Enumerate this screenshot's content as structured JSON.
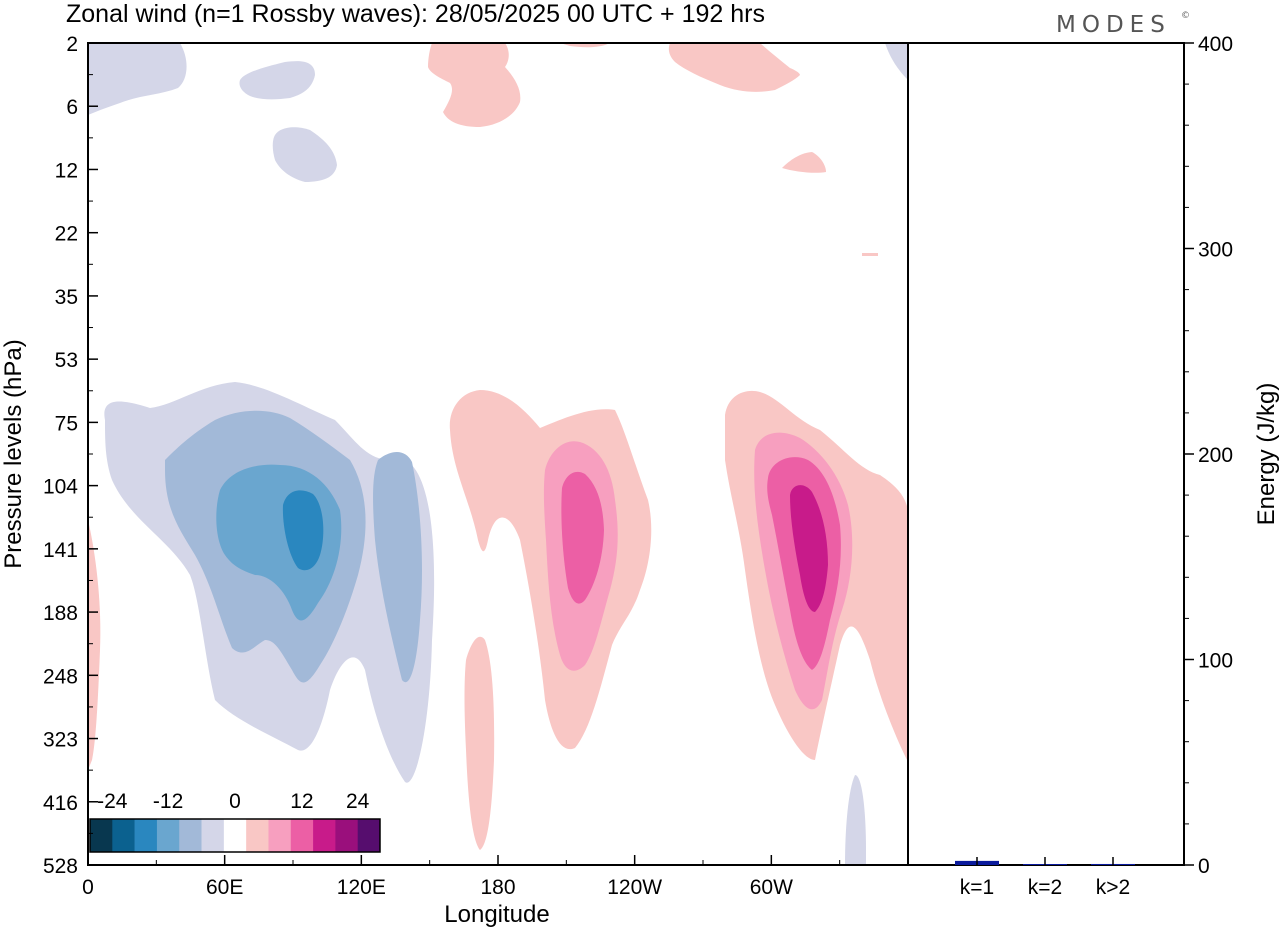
{
  "title": "Zonal wind (n=1 Rossby waves):  28/05/2025  00 UTC  + 192 hrs",
  "brand": "MODES",
  "brand_mark": "©",
  "colors": {
    "levels": [
      "#08374f",
      "#0b618f",
      "#2a87bf",
      "#6aa6cf",
      "#a2b9d8",
      "#d4d6e8",
      "#ffffff",
      "#f9c7c5",
      "#f79fbf",
      "#ec5fa5",
      "#c81b8a",
      "#9a0f7c",
      "#560d6e"
    ],
    "bar": "#0a1a9c"
  },
  "chart_data": [
    {
      "type": "heatmap",
      "subtype": "filled-contour (longitude-pressure)",
      "title": "Zonal wind (n=1 Rossby waves):  28/05/2025  00 UTC  + 192 hrs",
      "xlabel": "Longitude",
      "ylabel": "Pressure levels (hPa)",
      "x_ticks": [
        "0",
        "60E",
        "120E",
        "180",
        "120W",
        "60W"
      ],
      "x_tick_degrees": [
        0,
        60,
        120,
        180,
        240,
        300
      ],
      "xlim": [
        0,
        360
      ],
      "y_ticks": [
        "2",
        "6",
        "12",
        "22",
        "35",
        "53",
        "75",
        "104",
        "141",
        "188",
        "248",
        "323",
        "416",
        "528"
      ],
      "y_order": "2 at top, 528 at bottom (levels equally spaced)",
      "colorbar": {
        "labels": [
          "-24",
          "-12",
          "0",
          "12",
          "24"
        ],
        "boundaries": [
          -30,
          -25,
          -20,
          -15,
          -10,
          -5,
          0,
          5,
          10,
          15,
          20,
          25,
          30
        ],
        "placement": "bottom-left inside plot"
      },
      "features": [
        {
          "sign": "negative",
          "min_value": -20,
          "center_lon": 93,
          "center_level": "141",
          "extent_lon": [
            8,
            148
          ],
          "extent_levels": [
            "75",
            "416"
          ]
        },
        {
          "sign": "positive",
          "max_value": 15,
          "center_lon": 211,
          "center_level": "141",
          "extent_lon": [
            158,
            248
          ],
          "extent_levels": [
            "75",
            "323"
          ]
        },
        {
          "sign": "positive",
          "max_value": 20,
          "center_lon": 312,
          "center_level": "141",
          "extent_lon": [
            278,
            360
          ],
          "extent_levels": [
            "75",
            "323"
          ]
        },
        {
          "sign": "positive",
          "max_value": 5,
          "center_lon": 171,
          "center_level": "323",
          "extent_lon": [
            165,
            178
          ],
          "extent_levels": [
            "248",
            "528"
          ]
        },
        {
          "sign": "negative",
          "max_value": -5,
          "center_lon": 12,
          "center_level": "2",
          "extent_lon": [
            0,
            42
          ],
          "extent_levels": [
            "2",
            "6"
          ]
        },
        {
          "sign": "negative",
          "max_value": -5,
          "center_lon": 77,
          "center_level": "6",
          "extent_lon": [
            65,
            100
          ],
          "extent_levels": [
            "2",
            "6"
          ]
        },
        {
          "sign": "negative",
          "max_value": -5,
          "center_lon": 95,
          "center_level": "12",
          "extent_lon": [
            80,
            110
          ],
          "extent_levels": [
            "6",
            "22"
          ]
        },
        {
          "sign": "positive",
          "max_value": 5,
          "center_lon": 172,
          "center_level": "6",
          "extent_lon": [
            150,
            190
          ],
          "extent_levels": [
            "2",
            "12"
          ]
        },
        {
          "sign": "positive",
          "max_value": 5,
          "center_lon": 280,
          "center_level": "2",
          "extent_lon": [
            255,
            310
          ],
          "extent_levels": [
            "2",
            "6"
          ]
        },
        {
          "sign": "positive",
          "max_value": 5,
          "center_lon": 316,
          "center_level": "12",
          "extent_lon": [
            305,
            325
          ],
          "extent_levels": [
            "12",
            "12"
          ]
        },
        {
          "sign": "positive",
          "max_value": 5,
          "center_lon": 1,
          "center_level": "188",
          "extent_lon": [
            0,
            4
          ],
          "extent_levels": [
            "141",
            "416"
          ]
        },
        {
          "sign": "negative",
          "max_value": -5,
          "center_lon": 337,
          "center_level": "528",
          "extent_lon": [
            332,
            342
          ],
          "extent_levels": [
            "416",
            "528"
          ]
        }
      ]
    },
    {
      "type": "bar",
      "ylabel": "Energy (J/kg)",
      "ylim": [
        0,
        400
      ],
      "y_ticks": [
        0,
        100,
        200,
        300,
        400
      ],
      "categories": [
        "k=1",
        "k=2",
        "k>2"
      ],
      "values": [
        2,
        0.3,
        0.5
      ]
    }
  ]
}
